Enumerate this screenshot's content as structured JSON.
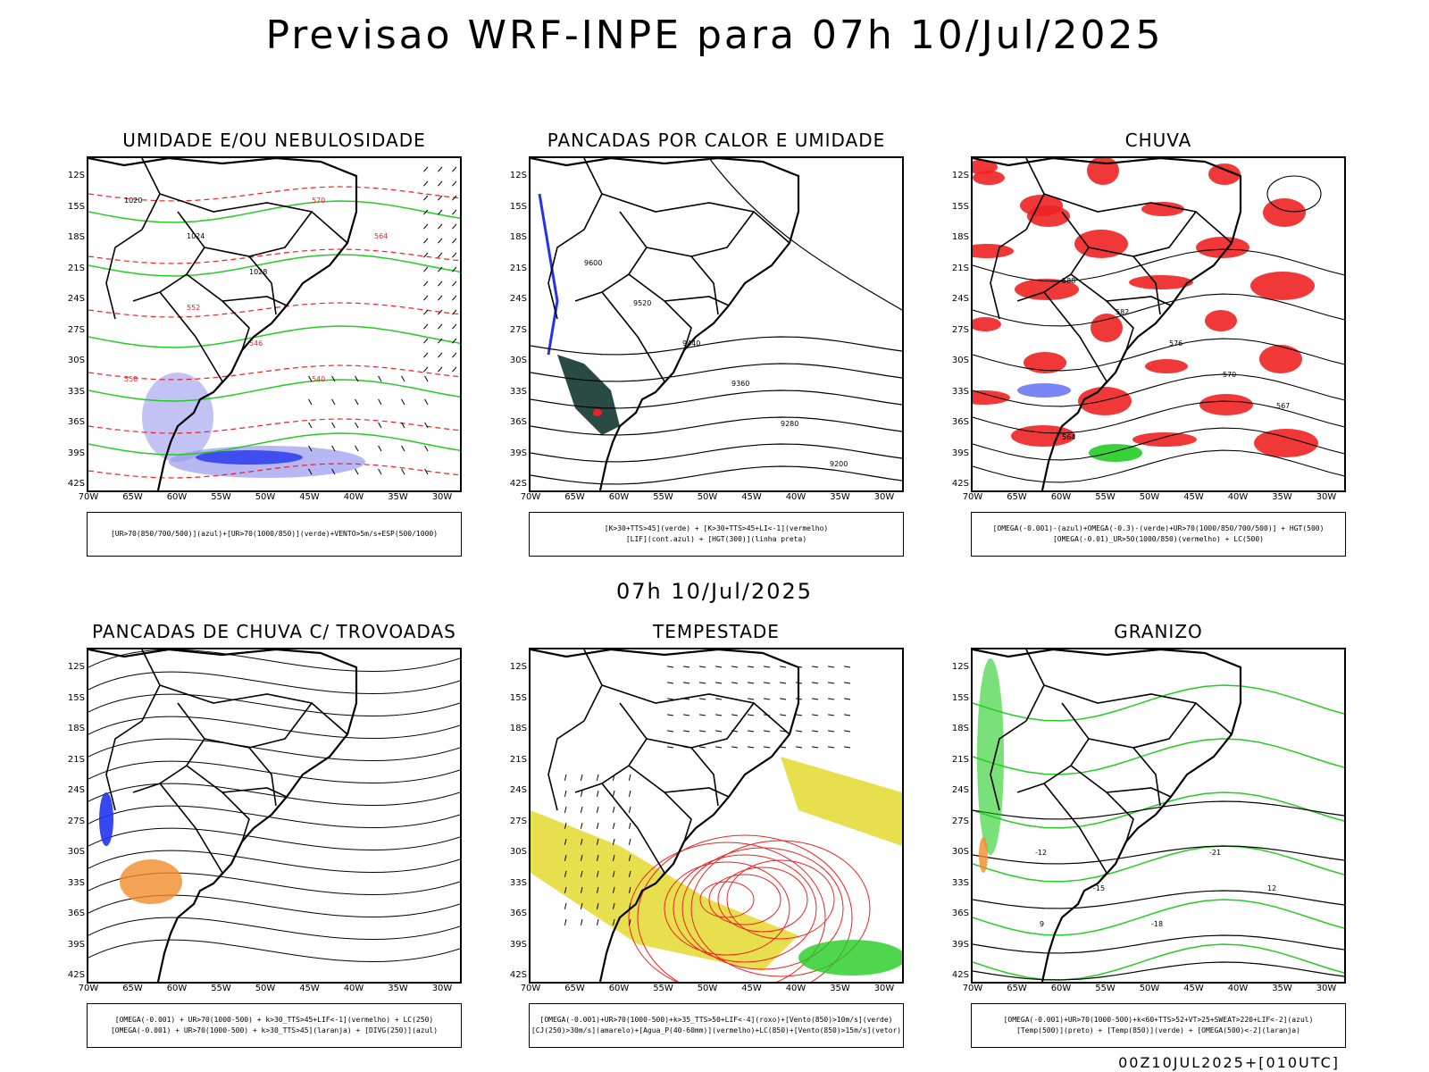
{
  "main_title": "Previsao WRF-INPE  para 07h 10/Jul/2025",
  "mid_title": "07h 10/Jul/2025",
  "footer": "00Z10JUL2025+[010UTC]",
  "lat_ticks": [
    "12S",
    "15S",
    "18S",
    "21S",
    "24S",
    "27S",
    "30S",
    "33S",
    "36S",
    "39S",
    "42S"
  ],
  "lon_ticks": [
    "70W",
    "65W",
    "60W",
    "55W",
    "50W",
    "45W",
    "40W",
    "35W",
    "30W"
  ],
  "panels": [
    {
      "title": "UMIDADE E/OU NEBULOSIDADE",
      "legend": [
        "[UR>70(850/700/500)](azul)+[UR>70(1000/850)](verde)+VENTO>5m/s+ESP(500/1000)"
      ],
      "contour_labels": [
        "1020",
        "1024",
        "1028",
        "570",
        "564",
        "558",
        "552",
        "546",
        "540"
      ]
    },
    {
      "title": "PANCADAS POR CALOR E UMIDADE",
      "legend": [
        "[K>30+TTS>45](verde) + [K>30+TTS>45+LI<-1](vermelho)",
        "[LIF](cont.azul) + [HGT(300)](linha preta)"
      ],
      "contour_labels": [
        "9600",
        "9520",
        "9440",
        "9360",
        "9280",
        "9200"
      ]
    },
    {
      "title": "CHUVA",
      "legend": [
        "[OMEGA(-0.001)-(azul)+OMEGA(-0.3)-(verde)+UR>70(1000/850/700/500)] + HGT(500)",
        "[OMEGA(-0.01)_UR>50(1000/850)(vermelho) + LC(500)"
      ],
      "contour_labels": [
        "588",
        "582",
        "576",
        "570",
        "567",
        "564"
      ]
    },
    {
      "title": "PANCADAS DE CHUVA C/ TROVOADAS",
      "legend": [
        "[OMEGA(-0.001) + UR>70(1000-500) + k>30_TTS>45+LIF<-1](vermelho) + LC(250)",
        "[OMEGA(-0.001) + UR>70(1000-500) + k>30_TTS>45](laranja) + [DIVG(250)](azul)"
      ],
      "contour_labels": []
    },
    {
      "title": "TEMPESTADE",
      "legend": [
        "[OMEGA(-0.001)+UR>70(1000-500)+k>35_TTS>50+LIF<-4](roxo)+[Vento(850)>10m/s](verde)",
        "[CJ(250)>30m/s](amarelo)+[Agua_P(40-60mm)](vermelho)+LC(850)+[Vento(850)>15m/s](vetor)"
      ],
      "contour_labels": []
    },
    {
      "title": "GRANIZO",
      "legend": [
        "[OMEGA(-0.001)+UR>70(1000-500)+k<60+TTS>52+VT>25+SWEAT>220+LIF<-2](azul)",
        "[Temp(500)](preto) + [Temp(850)](verde) + [OMEGA(500)<-2](laranja)"
      ],
      "contour_labels": [
        "-12",
        "-15",
        "-18",
        "-21",
        "12",
        "9"
      ]
    }
  ],
  "colors": {
    "coast": "#000000",
    "green": "#22cc22",
    "red": "#ee2222",
    "blue": "#2233ee",
    "lightblue": "#9999ee",
    "yellow": "#e6dc3c",
    "orange": "#f08c28",
    "darkgreen": "#2a4a44"
  }
}
